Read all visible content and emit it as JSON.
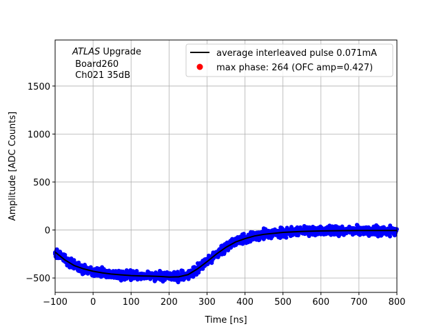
{
  "chart_data": {
    "type": "scatter",
    "xlabel": "Time [ns]",
    "ylabel": "Amplitude [ADC Counts]",
    "xlim": [
      -100,
      800
    ],
    "ylim": [
      -650,
      1980
    ],
    "xticks": [
      -100,
      0,
      100,
      200,
      300,
      400,
      500,
      600,
      700,
      800
    ],
    "yticks": [
      -500,
      0,
      500,
      1000,
      1500
    ],
    "grid": true,
    "legend_placement": "top-right",
    "annotation": {
      "italic": "ATLAS",
      "line1_rest": " Upgrade",
      "line2": " Board260",
      "line3": " Ch021 35dB"
    },
    "series": [
      {
        "name": "average interleaved pulse 0.071mA",
        "kind": "line",
        "color": "#000000",
        "x": [
          -100,
          -75,
          -50,
          -25,
          0,
          25,
          50,
          75,
          100,
          125,
          150,
          175,
          200,
          225,
          250,
          275,
          300,
          325,
          350,
          375,
          400,
          425,
          450,
          500,
          550,
          600,
          650,
          700,
          750,
          800
        ],
        "y": [
          -230,
          -310,
          -370,
          -405,
          -430,
          -447,
          -460,
          -468,
          -475,
          -478,
          -480,
          -484,
          -490,
          -488,
          -465,
          -405,
          -330,
          -250,
          -180,
          -125,
          -90,
          -62,
          -45,
          -25,
          -15,
          -10,
          -7,
          -5,
          -5,
          -5
        ]
      },
      {
        "kind": "scatter",
        "color": "#0000ff",
        "description_source": "samples scattered around average pulse"
      },
      {
        "name": "max phase: 264 (OFC amp=0.427)",
        "kind": "marker",
        "color": "#ff0000"
      }
    ]
  }
}
